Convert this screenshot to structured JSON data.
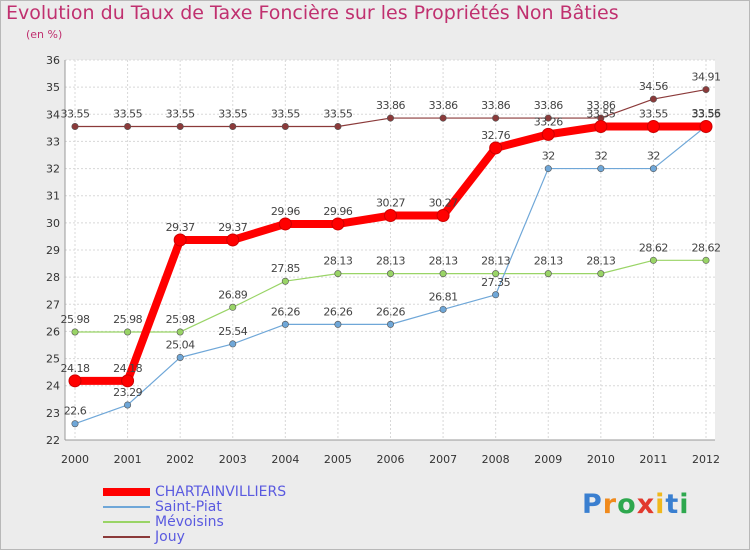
{
  "chart_data": {
    "type": "line",
    "title": "Evolution du Taux de Taxe Foncière sur les Propriétés Non Bâties",
    "unit_label": "(en %)",
    "xlabel": "",
    "ylabel": "(en %)",
    "ylim": [
      22,
      36
    ],
    "yticks": [
      "22",
      "23",
      "24",
      "25",
      "26",
      "27",
      "28",
      "29",
      "30",
      "31",
      "32",
      "33",
      "34",
      "35",
      "36"
    ],
    "x": [
      "2000",
      "2001",
      "2002",
      "2003",
      "2004",
      "2005",
      "2006",
      "2007",
      "2008",
      "2009",
      "2010",
      "2011",
      "2012"
    ],
    "series": [
      {
        "name": "CHARTAINVILLIERS",
        "color": "#ff0000",
        "labels": [
          "24.18",
          "24.18",
          "29.37",
          "29.37",
          "29.96",
          "29.96",
          "30.27",
          "30.27",
          "32.76",
          "33.26",
          "33.55",
          "33.55",
          "33.55"
        ],
        "values": [
          24.18,
          24.18,
          29.37,
          29.37,
          29.96,
          29.96,
          30.27,
          30.27,
          32.76,
          33.26,
          33.55,
          33.55,
          33.55
        ]
      },
      {
        "name": "Saint-Piat",
        "color": "#6fa7d8",
        "labels": [
          "22.6",
          "23.29",
          "25.04",
          "25.54",
          "26.26",
          "26.26",
          "26.26",
          "26.81",
          "27.35",
          "32",
          "32",
          "32",
          "33.56"
        ],
        "values": [
          22.6,
          23.29,
          25.04,
          25.54,
          26.26,
          26.26,
          26.26,
          26.81,
          27.35,
          32,
          32,
          32,
          33.56
        ]
      },
      {
        "name": "Mévoisins",
        "color": "#99d466",
        "labels": [
          "25.98",
          "25.98",
          "25.98",
          "26.89",
          "27.85",
          "28.13",
          "28.13",
          "28.13",
          "28.13",
          "28.13",
          "28.13",
          "28.62",
          "28.62"
        ],
        "values": [
          25.98,
          25.98,
          25.98,
          26.89,
          27.85,
          28.13,
          28.13,
          28.13,
          28.13,
          28.13,
          28.13,
          28.62,
          28.62
        ]
      },
      {
        "name": "Jouy",
        "color": "#8b3a3a",
        "labels": [
          "33.55",
          "33.55",
          "33.55",
          "33.55",
          "33.55",
          "33.55",
          "33.86",
          "33.86",
          "33.86",
          "33.86",
          "33.86",
          "34.56",
          "34.91"
        ],
        "values": [
          33.55,
          33.55,
          33.55,
          33.55,
          33.55,
          33.55,
          33.86,
          33.86,
          33.86,
          33.86,
          33.86,
          34.56,
          34.91
        ]
      }
    ],
    "legend_position": "bottom-left",
    "grid": true
  },
  "logo": {
    "text": "Proxiti"
  }
}
